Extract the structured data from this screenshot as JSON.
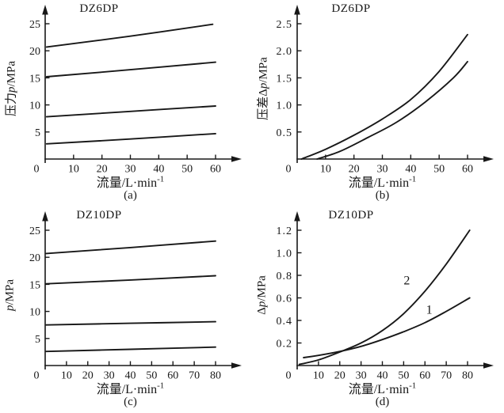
{
  "figure": {
    "background": "#ffffff",
    "ink_color": "#181818"
  },
  "chart_data": [
    {
      "panel": "(a)",
      "type": "line",
      "title": "DZ6DP",
      "xlabel": "流量/L·min⁻¹",
      "xlabel_base": "流量/L·min",
      "xlabel_sup": "-1",
      "ylabel": "压力p/MPa",
      "ylabel_parts": [
        {
          "text": "压力",
          "italic": false
        },
        {
          "text": "p",
          "italic": true
        },
        {
          "text": "/MPa",
          "italic": false
        }
      ],
      "origin_label": "0",
      "x_ticks": [
        10,
        20,
        30,
        40,
        50,
        60
      ],
      "y_ticks": [
        5,
        10,
        15,
        20,
        25
      ],
      "y_tick_labels": [
        "5",
        "10",
        "15",
        "20",
        "25"
      ],
      "xlim": [
        0,
        60
      ],
      "ylim": [
        0,
        25
      ],
      "grid": false,
      "series": [
        {
          "name": "pressure-line-1",
          "points": [
            [
              0.5,
              20.7
            ],
            [
              30,
              22.7
            ],
            [
              59,
              24.9
            ]
          ]
        },
        {
          "name": "pressure-line-2",
          "points": [
            [
              0.5,
              15.2
            ],
            [
              30,
              16.5
            ],
            [
              60,
              17.9
            ]
          ]
        },
        {
          "name": "pressure-line-3",
          "points": [
            [
              0.5,
              7.8
            ],
            [
              30,
              8.8
            ],
            [
              60,
              9.8
            ]
          ]
        },
        {
          "name": "pressure-line-4",
          "points": [
            [
              0.5,
              2.8
            ],
            [
              30,
              3.7
            ],
            [
              60,
              4.7
            ]
          ]
        }
      ],
      "annotations": []
    },
    {
      "panel": "(b)",
      "type": "line",
      "title": "DZ6DP",
      "xlabel": "流量/L·min⁻¹",
      "xlabel_base": "流量/L·min",
      "xlabel_sup": "-1",
      "ylabel": "压差Δp/MPa",
      "ylabel_parts": [
        {
          "text": "压差Δ",
          "italic": false
        },
        {
          "text": "p",
          "italic": true
        },
        {
          "text": "/MPa",
          "italic": false
        }
      ],
      "origin_label": "0",
      "x_ticks": [
        10,
        20,
        30,
        40,
        50,
        60
      ],
      "y_ticks": [
        0.5,
        1.0,
        1.5,
        2.0,
        2.5
      ],
      "y_tick_labels": [
        "0.5",
        "1.0",
        "1.5",
        "2.0",
        "2.5"
      ],
      "xlim": [
        0,
        60
      ],
      "ylim": [
        0,
        2.5
      ],
      "grid": false,
      "series": [
        {
          "name": "pressure-drop-upper",
          "points": [
            [
              1.5,
              0
            ],
            [
              10,
              0.18
            ],
            [
              20,
              0.44
            ],
            [
              30,
              0.74
            ],
            [
              40,
              1.1
            ],
            [
              50,
              1.62
            ],
            [
              60,
              2.3
            ]
          ]
        },
        {
          "name": "pressure-drop-lower",
          "points": [
            [
              7,
              0
            ],
            [
              15,
              0.14
            ],
            [
              25,
              0.4
            ],
            [
              35,
              0.68
            ],
            [
              45,
              1.05
            ],
            [
              55,
              1.5
            ],
            [
              60,
              1.8
            ]
          ]
        }
      ],
      "annotations": []
    },
    {
      "panel": "(c)",
      "type": "line",
      "title": "DZ10DP",
      "xlabel": "流量/L·min⁻¹",
      "xlabel_base": "流量/L·min",
      "xlabel_sup": "-1",
      "ylabel": "p/MPa",
      "ylabel_parts": [
        {
          "text": "p",
          "italic": true
        },
        {
          "text": "/MPa",
          "italic": false
        }
      ],
      "origin_label": "0",
      "x_ticks": [
        10,
        20,
        30,
        40,
        50,
        60,
        70,
        80
      ],
      "y_ticks": [
        5,
        10,
        15,
        20,
        25
      ],
      "y_tick_labels": [
        "5",
        "10",
        "15",
        "20",
        "25"
      ],
      "xlim": [
        0,
        80
      ],
      "ylim": [
        0,
        25
      ],
      "grid": false,
      "series": [
        {
          "name": "pressure-line-1",
          "points": [
            [
              0.5,
              20.7
            ],
            [
              40,
              21.8
            ],
            [
              80,
              23.0
            ]
          ]
        },
        {
          "name": "pressure-line-2",
          "points": [
            [
              0.5,
              15.1
            ],
            [
              40,
              15.8
            ],
            [
              80,
              16.6
            ]
          ]
        },
        {
          "name": "pressure-line-3",
          "points": [
            [
              0.5,
              7.5
            ],
            [
              40,
              7.8
            ],
            [
              80,
              8.1
            ]
          ]
        },
        {
          "name": "pressure-line-4",
          "points": [
            [
              0.5,
              2.6
            ],
            [
              40,
              3.0
            ],
            [
              80,
              3.4
            ]
          ]
        }
      ],
      "annotations": []
    },
    {
      "panel": "(d)",
      "type": "line",
      "title": "DZ10DP",
      "xlabel": "流量/L·min⁻¹",
      "xlabel_base": "流量/L·min",
      "xlabel_sup": "-1",
      "ylabel": "Δp/MPa",
      "ylabel_parts": [
        {
          "text": "Δ",
          "italic": false
        },
        {
          "text": "p",
          "italic": true
        },
        {
          "text": "/MPa",
          "italic": false
        }
      ],
      "origin_label": "0",
      "x_ticks": [
        10,
        20,
        30,
        40,
        50,
        60,
        70,
        80
      ],
      "y_ticks": [
        0.2,
        0.4,
        0.6,
        0.8,
        1.0,
        1.2
      ],
      "y_tick_labels": [
        "0.2",
        "0.4",
        "0.6",
        "0.8",
        "1.0",
        "1.2"
      ],
      "xlim": [
        0,
        80
      ],
      "ylim": [
        0,
        1.2
      ],
      "grid": false,
      "series": [
        {
          "name": "curve-2",
          "points": [
            [
              1,
              0.01
            ],
            [
              10,
              0.05
            ],
            [
              20,
              0.12
            ],
            [
              30,
              0.2
            ],
            [
              40,
              0.31
            ],
            [
              50,
              0.46
            ],
            [
              60,
              0.66
            ],
            [
              70,
              0.9
            ],
            [
              81,
              1.2
            ]
          ]
        },
        {
          "name": "curve-1",
          "points": [
            [
              3,
              0.07
            ],
            [
              10,
              0.09
            ],
            [
              20,
              0.125
            ],
            [
              30,
              0.17
            ],
            [
              40,
              0.23
            ],
            [
              50,
              0.3
            ],
            [
              60,
              0.38
            ],
            [
              70,
              0.48
            ],
            [
              81,
              0.6
            ]
          ]
        }
      ],
      "annotations": [
        {
          "text": "2",
          "x": 51.5,
          "y": 0.72
        },
        {
          "text": "1",
          "x": 62,
          "y": 0.46
        }
      ]
    }
  ]
}
